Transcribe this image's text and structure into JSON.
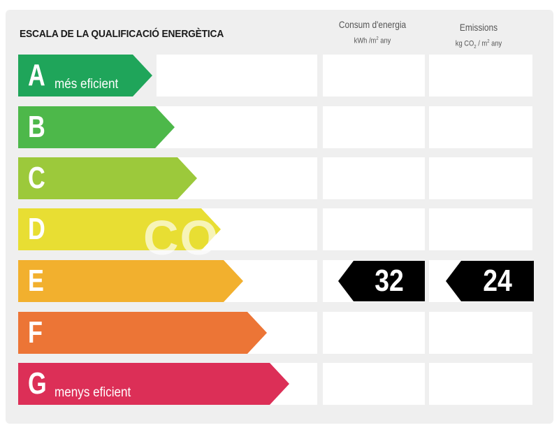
{
  "title": "ESCALA DE LA QUALIFICACIÓ ENERGÈTICA",
  "columns": {
    "energy": {
      "title": "Consum d'energia",
      "unit_a": "kWh /m",
      "unit_sup": "2",
      "unit_b": " any"
    },
    "emissions": {
      "title": "Emissions",
      "unit_a": "kg CO",
      "unit_sub": "2",
      "unit_b": " / m",
      "unit_sup": "2",
      "unit_c": " any"
    }
  },
  "ratings": [
    {
      "letter": "A",
      "sublabel": "més eficient",
      "color": "#1fa55a"
    },
    {
      "letter": "B",
      "sublabel": "",
      "color": "#4db84a"
    },
    {
      "letter": "C",
      "sublabel": "",
      "color": "#9cc93b"
    },
    {
      "letter": "D",
      "sublabel": "",
      "color": "#e8de33"
    },
    {
      "letter": "E",
      "sublabel": "",
      "color": "#f2b02e"
    },
    {
      "letter": "F",
      "sublabel": "",
      "color": "#ec7536"
    },
    {
      "letter": "G",
      "sublabel": "menys eficient",
      "color": "#dc2f57"
    }
  ],
  "current_rating": "E",
  "energy_value": "32",
  "emissions_value": "24",
  "watermark": "CO"
}
